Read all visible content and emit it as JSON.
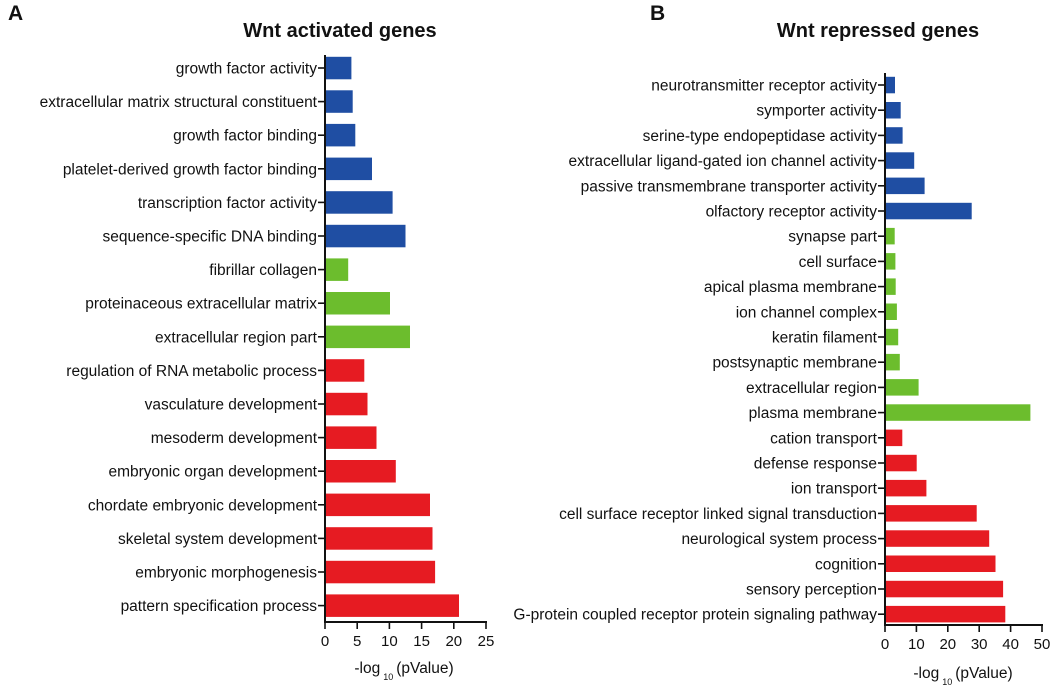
{
  "colors": {
    "blue": "#1f4ea3",
    "green": "#6cbd2d",
    "red": "#e61b22"
  },
  "chart_data": [
    {
      "type": "bar",
      "orientation": "horizontal",
      "panel_letter": "A",
      "title": "Wnt activated genes",
      "xlabel": "-log",
      "xlabel_sub": "10",
      "xlabel_suffix": "(pValue)",
      "xlim": [
        0,
        25
      ],
      "xticks": [
        "0",
        "5",
        "10",
        "15",
        "20",
        "25"
      ],
      "categories": [
        "growth factor activity",
        "extracellular matrix structural constituent",
        "growth factor binding",
        "platelet-derived growth factor binding",
        "transcription factor activity",
        "sequence-specific DNA binding",
        "fibrillar collagen",
        "proteinaceous extracellular matrix",
        "extracellular region part",
        "regulation of RNA metabolic process",
        "vasculature development",
        "mesoderm development",
        "embryonic organ development",
        "chordate embryonic development",
        "skeletal system development",
        "embryonic morphogenesis",
        "pattern specification process"
      ],
      "values": [
        4.1,
        4.3,
        4.7,
        7.3,
        10.5,
        12.5,
        3.6,
        10.1,
        13.2,
        6.1,
        6.6,
        8.0,
        11.0,
        16.3,
        16.7,
        17.1,
        20.8
      ],
      "groups": [
        "blue",
        "blue",
        "blue",
        "blue",
        "blue",
        "blue",
        "green",
        "green",
        "green",
        "red",
        "red",
        "red",
        "red",
        "red",
        "red",
        "red",
        "red"
      ]
    },
    {
      "type": "bar",
      "orientation": "horizontal",
      "panel_letter": "B",
      "title": "Wnt repressed genes",
      "xlabel": "-log",
      "xlabel_sub": "10",
      "xlabel_suffix": "(pValue)",
      "xlim": [
        0,
        50
      ],
      "xticks": [
        "0",
        "10",
        "20",
        "30",
        "40",
        "50"
      ],
      "categories": [
        "neurotransmitter receptor activity",
        "symporter activity",
        "serine-type endopeptidase activity",
        "extracellular ligand-gated ion channel activity",
        "passive transmembrane transporter activity",
        "olfactory receptor activity",
        "synapse part",
        "cell surface",
        "apical plasma membrane",
        "ion channel complex",
        "keratin filament",
        "postsynaptic membrane",
        "extracellular region",
        "plasma membrane",
        "cation transport",
        "defense response",
        "ion transport",
        "cell surface receptor linked signal transduction",
        "neurological system process",
        "cognition",
        "sensory perception",
        "G-protein coupled receptor protein signaling pathway"
      ],
      "values": [
        3.2,
        5.0,
        5.6,
        9.3,
        12.6,
        27.6,
        3.1,
        3.3,
        3.4,
        3.8,
        4.2,
        4.7,
        10.7,
        46.3,
        5.5,
        10.1,
        13.2,
        29.2,
        33.2,
        35.2,
        37.6,
        38.3
      ],
      "groups": [
        "blue",
        "blue",
        "blue",
        "blue",
        "blue",
        "blue",
        "green",
        "green",
        "green",
        "green",
        "green",
        "green",
        "green",
        "green",
        "red",
        "red",
        "red",
        "red",
        "red",
        "red",
        "red",
        "red"
      ]
    }
  ]
}
